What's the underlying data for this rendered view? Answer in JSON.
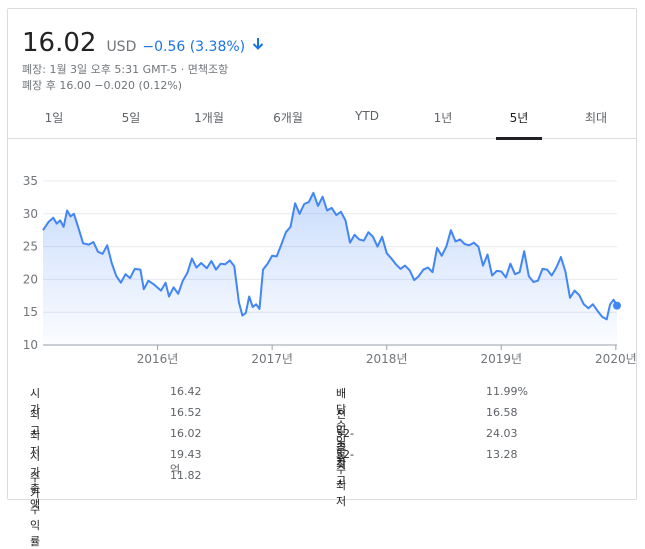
{
  "header": {
    "price": "16.02",
    "currency": "USD",
    "change": "−0.56 (3.38%)",
    "closed_note": "폐장: 1월 3일 오후 5:31 GMT-5 · 면책조항",
    "after_hours": "폐장 후 16.00 −0.020 (0.12%)"
  },
  "tabs": [
    "1일",
    "5일",
    "1개월",
    "6개월",
    "YTD",
    "1년",
    "5년",
    "최대"
  ],
  "active_tab": "5년",
  "colors": {
    "accent": "#1a73e8",
    "line": "#4285f4",
    "fill": "#e8f0fe",
    "grid": "#e8eaed"
  },
  "chart_data": {
    "type": "area",
    "ylim": [
      10,
      35
    ],
    "yticks": [
      10,
      15,
      20,
      25,
      30,
      35
    ],
    "xticks": [
      "2016년",
      "2017년",
      "2018년",
      "2019년",
      "2020년"
    ],
    "x_start": 2015.0,
    "x_end": 2020.01,
    "points": [
      [
        2015.0,
        27.5
      ],
      [
        2015.05,
        28.8
      ],
      [
        2015.09,
        29.4
      ],
      [
        2015.12,
        28.5
      ],
      [
        2015.15,
        29.0
      ],
      [
        2015.18,
        28.0
      ],
      [
        2015.21,
        30.5
      ],
      [
        2015.24,
        29.6
      ],
      [
        2015.27,
        30.0
      ],
      [
        2015.31,
        27.8
      ],
      [
        2015.35,
        25.5
      ],
      [
        2015.4,
        25.3
      ],
      [
        2015.44,
        25.7
      ],
      [
        2015.48,
        24.2
      ],
      [
        2015.52,
        23.9
      ],
      [
        2015.56,
        25.2
      ],
      [
        2015.6,
        22.5
      ],
      [
        2015.64,
        20.5
      ],
      [
        2015.68,
        19.5
      ],
      [
        2015.72,
        20.8
      ],
      [
        2015.76,
        20.2
      ],
      [
        2015.8,
        21.6
      ],
      [
        2015.85,
        21.5
      ],
      [
        2015.88,
        18.5
      ],
      [
        2015.92,
        19.8
      ],
      [
        2015.97,
        19.2
      ],
      [
        2016.03,
        18.3
      ],
      [
        2016.07,
        19.5
      ],
      [
        2016.1,
        17.4
      ],
      [
        2016.14,
        18.8
      ],
      [
        2016.18,
        17.8
      ],
      [
        2016.22,
        19.8
      ],
      [
        2016.26,
        21.0
      ],
      [
        2016.3,
        23.2
      ],
      [
        2016.34,
        21.8
      ],
      [
        2016.38,
        22.5
      ],
      [
        2016.43,
        21.7
      ],
      [
        2016.47,
        22.8
      ],
      [
        2016.51,
        21.5
      ],
      [
        2016.55,
        22.4
      ],
      [
        2016.59,
        22.3
      ],
      [
        2016.63,
        22.9
      ],
      [
        2016.67,
        22.0
      ],
      [
        2016.71,
        16.5
      ],
      [
        2016.74,
        14.5
      ],
      [
        2016.77,
        14.9
      ],
      [
        2016.8,
        17.4
      ],
      [
        2016.83,
        15.8
      ],
      [
        2016.86,
        16.2
      ],
      [
        2016.89,
        15.5
      ],
      [
        2016.92,
        21.5
      ],
      [
        2016.96,
        22.4
      ],
      [
        2017.0,
        23.6
      ],
      [
        2017.04,
        23.5
      ],
      [
        2017.08,
        25.3
      ],
      [
        2017.12,
        27.2
      ],
      [
        2017.16,
        28.0
      ],
      [
        2017.2,
        31.6
      ],
      [
        2017.24,
        30.0
      ],
      [
        2017.28,
        31.5
      ],
      [
        2017.32,
        31.8
      ],
      [
        2017.36,
        33.2
      ],
      [
        2017.4,
        31.2
      ],
      [
        2017.44,
        32.6
      ],
      [
        2017.48,
        30.5
      ],
      [
        2017.52,
        30.9
      ],
      [
        2017.56,
        29.8
      ],
      [
        2017.6,
        30.3
      ],
      [
        2017.64,
        29.0
      ],
      [
        2017.68,
        25.6
      ],
      [
        2017.72,
        26.8
      ],
      [
        2017.76,
        26.1
      ],
      [
        2017.8,
        25.9
      ],
      [
        2017.84,
        27.2
      ],
      [
        2017.88,
        26.5
      ],
      [
        2017.92,
        25.0
      ],
      [
        2017.96,
        26.5
      ],
      [
        2018.0,
        24.0
      ],
      [
        2018.04,
        23.2
      ],
      [
        2018.08,
        22.3
      ],
      [
        2018.12,
        21.6
      ],
      [
        2018.16,
        22.1
      ],
      [
        2018.2,
        21.4
      ],
      [
        2018.24,
        19.9
      ],
      [
        2018.28,
        20.5
      ],
      [
        2018.32,
        21.5
      ],
      [
        2018.36,
        21.8
      ],
      [
        2018.4,
        21.1
      ],
      [
        2018.44,
        24.8
      ],
      [
        2018.48,
        23.6
      ],
      [
        2018.52,
        25.0
      ],
      [
        2018.56,
        27.5
      ],
      [
        2018.6,
        25.8
      ],
      [
        2018.64,
        26.1
      ],
      [
        2018.68,
        25.4
      ],
      [
        2018.72,
        25.2
      ],
      [
        2018.76,
        25.6
      ],
      [
        2018.8,
        25.0
      ],
      [
        2018.84,
        22.1
      ],
      [
        2018.88,
        23.8
      ],
      [
        2018.92,
        20.6
      ],
      [
        2018.96,
        21.3
      ],
      [
        2019.0,
        21.2
      ],
      [
        2019.04,
        20.3
      ],
      [
        2019.08,
        22.4
      ],
      [
        2019.12,
        20.8
      ],
      [
        2019.16,
        21.1
      ],
      [
        2019.2,
        24.3
      ],
      [
        2019.24,
        20.5
      ],
      [
        2019.28,
        19.6
      ],
      [
        2019.32,
        19.8
      ],
      [
        2019.36,
        21.6
      ],
      [
        2019.4,
        21.5
      ],
      [
        2019.44,
        20.6
      ],
      [
        2019.48,
        21.8
      ],
      [
        2019.52,
        23.4
      ],
      [
        2019.56,
        21.2
      ],
      [
        2019.6,
        17.2
      ],
      [
        2019.64,
        18.3
      ],
      [
        2019.68,
        17.6
      ],
      [
        2019.72,
        16.2
      ],
      [
        2019.76,
        15.6
      ],
      [
        2019.8,
        16.2
      ],
      [
        2019.84,
        15.2
      ],
      [
        2019.88,
        14.3
      ],
      [
        2019.92,
        13.9
      ],
      [
        2019.95,
        16.2
      ],
      [
        2019.98,
        16.9
      ],
      [
        2020.01,
        16.0
      ]
    ]
  },
  "stats_left": [
    {
      "label": "시가",
      "value": "16.42"
    },
    {
      "label": "최고",
      "value": "16.52"
    },
    {
      "label": "최저",
      "value": "16.02"
    },
    {
      "label": "시가총액",
      "value": "19.43억"
    },
    {
      "label": "주가수익률",
      "value": "11.82"
    }
  ],
  "stats_right": [
    {
      "label": "배당수익률",
      "value": "11.99%"
    },
    {
      "label": "전일 종가",
      "value": "16.58"
    },
    {
      "label": "52-주 최고",
      "value": "24.03"
    },
    {
      "label": "52-주 최저",
      "value": "13.28"
    }
  ]
}
